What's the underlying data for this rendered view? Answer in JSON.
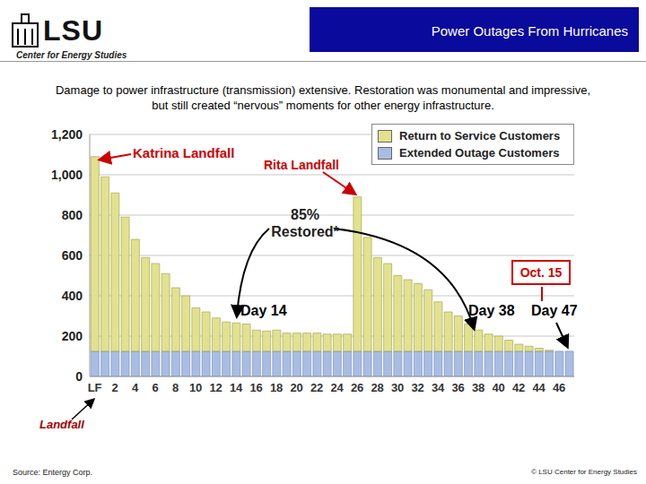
{
  "header": {
    "title": "Power Outages From Hurricanes",
    "logo": "LSU",
    "org": "Center for Energy Studies"
  },
  "subtitle": "Damage to power infrastructure (transmission) extensive.  Restoration was monumental and impressive, but still created “nervous” moments for other energy infrastructure.",
  "source": "Source: Entergy Corp.",
  "copyright": "© LSU Center for Energy Studies",
  "chart_data": {
    "type": "bar",
    "stacked": true,
    "grid": true,
    "legend": "upper right",
    "categories": [
      "LF",
      null,
      "2",
      null,
      "4",
      null,
      "6",
      null,
      "8",
      null,
      "10",
      null,
      "12",
      null,
      "14",
      null,
      "16",
      null,
      "18",
      null,
      "20",
      null,
      "22",
      null,
      "24",
      null,
      "26",
      null,
      "28",
      null,
      "30",
      null,
      "32",
      null,
      "34",
      null,
      "36",
      null,
      "38",
      null,
      "40",
      null,
      "42",
      null,
      "44",
      null,
      "46",
      null
    ],
    "series": [
      {
        "name": "Extended Outage Customers",
        "color": "#a9bde3",
        "values": [
          125,
          125,
          125,
          125,
          125,
          125,
          125,
          125,
          125,
          125,
          125,
          125,
          125,
          125,
          125,
          125,
          125,
          125,
          125,
          125,
          125,
          125,
          125,
          125,
          125,
          125,
          125,
          125,
          125,
          125,
          125,
          125,
          125,
          125,
          125,
          125,
          125,
          125,
          125,
          125,
          125,
          125,
          125,
          125,
          125,
          125,
          125,
          125
        ]
      },
      {
        "name": "Return to Service Customers",
        "color": "#e2e28e",
        "values": [
          965,
          865,
          785,
          665,
          555,
          465,
          435,
          385,
          315,
          275,
          215,
          195,
          165,
          145,
          140,
          135,
          105,
          100,
          105,
          90,
          90,
          90,
          90,
          85,
          85,
          85,
          765,
          565,
          465,
          435,
          375,
          355,
          335,
          305,
          245,
          195,
          175,
          135,
          105,
          85,
          75,
          55,
          35,
          25,
          15,
          5,
          0,
          0
        ]
      }
    ],
    "ylim": [
      0,
      1200
    ],
    "yticks": [
      0,
      200,
      400,
      600,
      800,
      {
        "value": 1000,
        "label": "1,000"
      },
      {
        "value": 1200,
        "label": "1,200"
      }
    ],
    "annotations": [
      "Katrina Landfall",
      "Rita Landfall",
      "85% Restored*",
      "Day 14",
      "Day 38",
      "Day 47",
      "Oct. 15",
      "Landfall"
    ]
  }
}
